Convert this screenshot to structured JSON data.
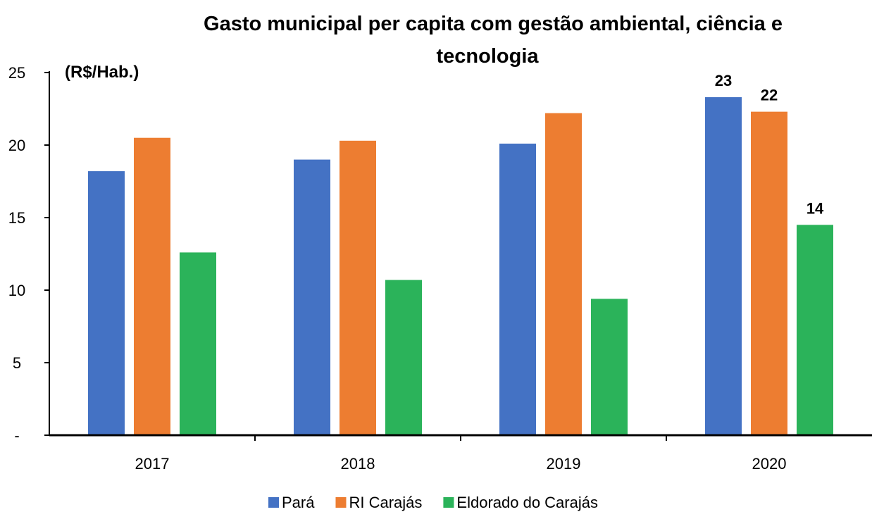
{
  "chart_data": {
    "type": "bar",
    "title_line1": "Gasto municipal per capita com gestão ambiental, ciência e",
    "title_line2": "tecnologia",
    "unit_label": "(R$/Hab.)",
    "categories": [
      "2017",
      "2018",
      "2019",
      "2020"
    ],
    "series": [
      {
        "name": "Pará",
        "color": "#4472C4",
        "values": [
          18.2,
          19.0,
          20.1,
          23.3
        ]
      },
      {
        "name": "RI Carajás",
        "color": "#ED7D31",
        "values": [
          20.5,
          20.3,
          22.2,
          22.3
        ]
      },
      {
        "name": "Eldorado do Carajás",
        "color": "#2BB35A",
        "values": [
          12.6,
          10.7,
          9.4,
          14.5
        ]
      }
    ],
    "data_labels": [
      {
        "category": "2020",
        "series": "Pará",
        "text": "23"
      },
      {
        "category": "2020",
        "series": "RI Carajás",
        "text": "22"
      },
      {
        "category": "2020",
        "series": "Eldorado do Carajás",
        "text": "14"
      }
    ],
    "y_ticks": [
      {
        "value": 0,
        "label": "-"
      },
      {
        "value": 5,
        "label": "5"
      },
      {
        "value": 10,
        "label": "10"
      },
      {
        "value": 15,
        "label": "15"
      },
      {
        "value": 20,
        "label": "20"
      },
      {
        "value": 25,
        "label": "25"
      }
    ],
    "ylim": [
      0,
      25
    ],
    "grid": false,
    "legend_position": "bottom"
  }
}
